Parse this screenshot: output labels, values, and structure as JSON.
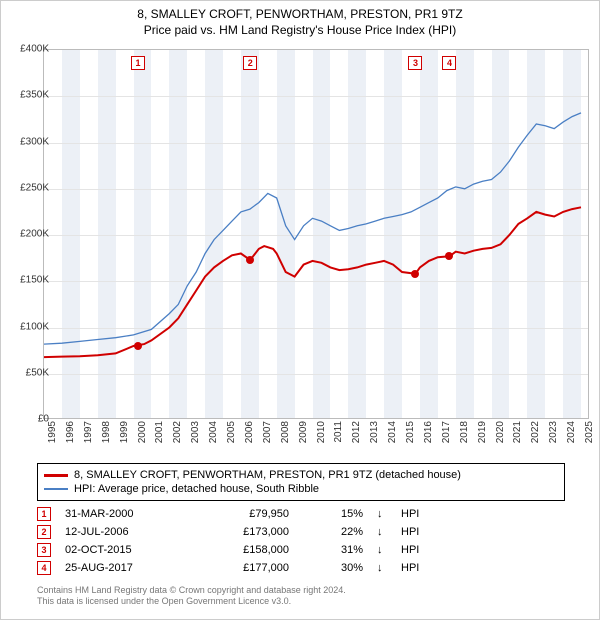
{
  "title_line1": "8, SMALLEY CROFT, PENWORTHAM, PRESTON, PR1 9TZ",
  "title_line2": "Price paid vs. HM Land Registry's House Price Index (HPI)",
  "chart": {
    "type": "line",
    "x_years": [
      1995,
      1996,
      1997,
      1998,
      1999,
      2000,
      2001,
      2002,
      2003,
      2004,
      2005,
      2006,
      2007,
      2008,
      2009,
      2010,
      2011,
      2012,
      2013,
      2014,
      2015,
      2016,
      2017,
      2018,
      2019,
      2020,
      2021,
      2022,
      2023,
      2024,
      2025
    ],
    "xlim": [
      1995,
      2025.5
    ],
    "ylim": [
      0,
      400000
    ],
    "ytick_step": 50000,
    "ytick_labels": [
      "£0",
      "£50K",
      "£100K",
      "£150K",
      "£200K",
      "£250K",
      "£300K",
      "£350K",
      "£400K"
    ],
    "background_color": "#ffffff",
    "grid_color": "#e4e4e4",
    "band_color": "#ecf0f6",
    "series_price": {
      "color": "#d00000",
      "width": 2,
      "label": "8, SMALLEY CROFT, PENWORTHAM, PRESTON, PR1 9TZ (detached house)",
      "points": [
        [
          1995,
          68000
        ],
        [
          1996,
          68500
        ],
        [
          1997,
          69000
        ],
        [
          1998,
          70000
        ],
        [
          1999,
          72000
        ],
        [
          2000,
          79950
        ],
        [
          2000.6,
          82000
        ],
        [
          2001,
          86000
        ],
        [
          2002,
          100000
        ],
        [
          2002.5,
          110000
        ],
        [
          2003,
          125000
        ],
        [
          2003.5,
          140000
        ],
        [
          2004,
          155000
        ],
        [
          2004.5,
          165000
        ],
        [
          2005,
          172000
        ],
        [
          2005.5,
          178000
        ],
        [
          2006,
          180000
        ],
        [
          2006.52,
          173000
        ],
        [
          2007,
          185000
        ],
        [
          2007.3,
          188000
        ],
        [
          2007.8,
          185000
        ],
        [
          2008,
          180000
        ],
        [
          2008.5,
          160000
        ],
        [
          2009,
          155000
        ],
        [
          2009.5,
          168000
        ],
        [
          2010,
          172000
        ],
        [
          2010.5,
          170000
        ],
        [
          2011,
          165000
        ],
        [
          2011.5,
          162000
        ],
        [
          2012,
          163000
        ],
        [
          2012.5,
          165000
        ],
        [
          2013,
          168000
        ],
        [
          2013.5,
          170000
        ],
        [
          2014,
          172000
        ],
        [
          2014.5,
          168000
        ],
        [
          2015,
          160000
        ],
        [
          2015.75,
          158000
        ],
        [
          2016,
          165000
        ],
        [
          2016.5,
          172000
        ],
        [
          2017,
          176000
        ],
        [
          2017.65,
          177000
        ],
        [
          2018,
          182000
        ],
        [
          2018.5,
          180000
        ],
        [
          2019,
          183000
        ],
        [
          2019.5,
          185000
        ],
        [
          2020,
          186000
        ],
        [
          2020.5,
          190000
        ],
        [
          2021,
          200000
        ],
        [
          2021.5,
          212000
        ],
        [
          2022,
          218000
        ],
        [
          2022.5,
          225000
        ],
        [
          2023,
          222000
        ],
        [
          2023.5,
          220000
        ],
        [
          2024,
          225000
        ],
        [
          2024.5,
          228000
        ],
        [
          2025,
          230000
        ]
      ]
    },
    "series_hpi": {
      "color": "#4a7fc4",
      "width": 1.3,
      "label": "HPI: Average price, detached house, South Ribble",
      "points": [
        [
          1995,
          82000
        ],
        [
          1996,
          83000
        ],
        [
          1997,
          85000
        ],
        [
          1998,
          87000
        ],
        [
          1999,
          89000
        ],
        [
          2000,
          92000
        ],
        [
          2001,
          98000
        ],
        [
          2002,
          115000
        ],
        [
          2002.5,
          125000
        ],
        [
          2003,
          145000
        ],
        [
          2003.5,
          160000
        ],
        [
          2004,
          180000
        ],
        [
          2004.5,
          195000
        ],
        [
          2005,
          205000
        ],
        [
          2005.5,
          215000
        ],
        [
          2006,
          225000
        ],
        [
          2006.5,
          228000
        ],
        [
          2007,
          235000
        ],
        [
          2007.5,
          245000
        ],
        [
          2008,
          240000
        ],
        [
          2008.5,
          210000
        ],
        [
          2009,
          195000
        ],
        [
          2009.5,
          210000
        ],
        [
          2010,
          218000
        ],
        [
          2010.5,
          215000
        ],
        [
          2011,
          210000
        ],
        [
          2011.5,
          205000
        ],
        [
          2012,
          207000
        ],
        [
          2012.5,
          210000
        ],
        [
          2013,
          212000
        ],
        [
          2013.5,
          215000
        ],
        [
          2014,
          218000
        ],
        [
          2014.5,
          220000
        ],
        [
          2015,
          222000
        ],
        [
          2015.5,
          225000
        ],
        [
          2016,
          230000
        ],
        [
          2016.5,
          235000
        ],
        [
          2017,
          240000
        ],
        [
          2017.5,
          248000
        ],
        [
          2018,
          252000
        ],
        [
          2018.5,
          250000
        ],
        [
          2019,
          255000
        ],
        [
          2019.5,
          258000
        ],
        [
          2020,
          260000
        ],
        [
          2020.5,
          268000
        ],
        [
          2021,
          280000
        ],
        [
          2021.5,
          295000
        ],
        [
          2022,
          308000
        ],
        [
          2022.5,
          320000
        ],
        [
          2023,
          318000
        ],
        [
          2023.5,
          315000
        ],
        [
          2024,
          322000
        ],
        [
          2024.5,
          328000
        ],
        [
          2025,
          332000
        ]
      ]
    },
    "sale_points": [
      {
        "n": "1",
        "year": 2000.25,
        "price": 79950
      },
      {
        "n": "2",
        "year": 2006.52,
        "price": 173000
      },
      {
        "n": "3",
        "year": 2015.75,
        "price": 158000
      },
      {
        "n": "4",
        "year": 2017.65,
        "price": 177000
      }
    ]
  },
  "events": [
    {
      "n": "1",
      "date": "31-MAR-2000",
      "price": "£79,950",
      "pct": "15%",
      "arrow": "↓",
      "label": "HPI"
    },
    {
      "n": "2",
      "date": "12-JUL-2006",
      "price": "£173,000",
      "pct": "22%",
      "arrow": "↓",
      "label": "HPI"
    },
    {
      "n": "3",
      "date": "02-OCT-2015",
      "price": "£158,000",
      "pct": "31%",
      "arrow": "↓",
      "label": "HPI"
    },
    {
      "n": "4",
      "date": "25-AUG-2017",
      "price": "£177,000",
      "pct": "30%",
      "arrow": "↓",
      "label": "HPI"
    }
  ],
  "footer_line1": "Contains HM Land Registry data © Crown copyright and database right 2024.",
  "footer_line2": "This data is licensed under the Open Government Licence v3.0."
}
